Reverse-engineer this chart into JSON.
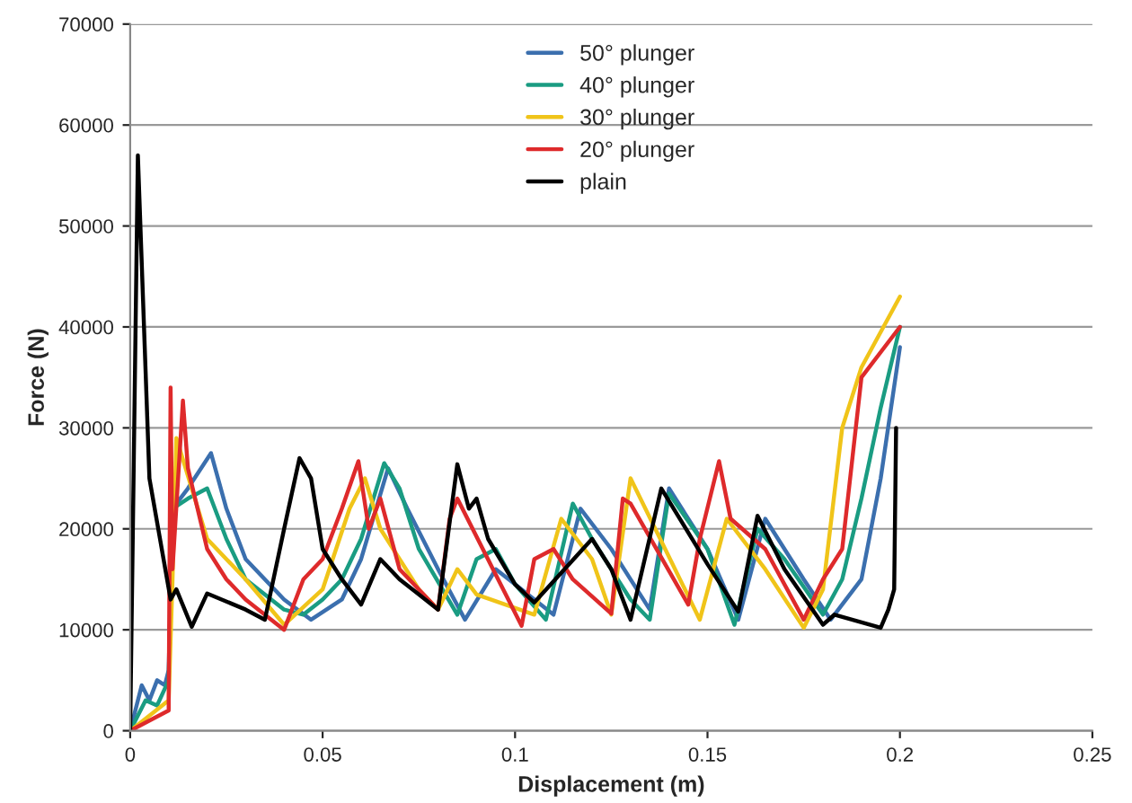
{
  "chart_data": {
    "type": "line",
    "xlabel": "Displacement (m)",
    "ylabel": "Force (N)",
    "xlim": [
      0,
      0.25
    ],
    "xticks": [
      0,
      0.05,
      0.1,
      0.15,
      0.2,
      0.25
    ],
    "ylim": [
      0,
      70000
    ],
    "yticks": [
      0,
      10000,
      20000,
      30000,
      40000,
      50000,
      60000,
      70000
    ],
    "grid": "y",
    "legend": "top",
    "marker": "none",
    "line_style": "solid",
    "series": [
      {
        "name": "50° plunger",
        "color": "#3b6fae",
        "x": [
          0,
          0.003,
          0.005,
          0.007,
          0.009,
          0.01,
          0.011,
          0.015,
          0.021,
          0.025,
          0.03,
          0.04,
          0.047,
          0.055,
          0.06,
          0.067,
          0.072,
          0.08,
          0.087,
          0.095,
          0.1,
          0.11,
          0.117,
          0.125,
          0.135,
          0.14,
          0.15,
          0.158,
          0.165,
          0.175,
          0.182,
          0.19,
          0.195,
          0.2
        ],
        "values": [
          0,
          4500,
          3000,
          5000,
          4500,
          6000,
          22000,
          24000,
          27500,
          22000,
          17000,
          13000,
          11000,
          13000,
          17000,
          26000,
          22000,
          16000,
          11000,
          16000,
          14500,
          11500,
          22000,
          18000,
          12000,
          24000,
          18000,
          11000,
          21000,
          15000,
          11000,
          15000,
          25000,
          38000
        ]
      },
      {
        "name": "40° plunger",
        "color": "#1a9c82",
        "x": [
          0,
          0.004,
          0.007,
          0.01,
          0.011,
          0.015,
          0.02,
          0.025,
          0.03,
          0.04,
          0.045,
          0.05,
          0.055,
          0.06,
          0.066,
          0.07,
          0.075,
          0.085,
          0.09,
          0.095,
          0.1,
          0.108,
          0.115,
          0.12,
          0.13,
          0.135,
          0.14,
          0.15,
          0.157,
          0.163,
          0.17,
          0.18,
          0.185,
          0.19,
          0.195,
          0.2
        ],
        "values": [
          0,
          3000,
          2500,
          5000,
          22000,
          23000,
          24000,
          19000,
          15000,
          12000,
          11500,
          13000,
          15000,
          19000,
          26500,
          24000,
          18000,
          11500,
          17000,
          18000,
          14500,
          11000,
          22500,
          19000,
          13000,
          11000,
          23500,
          18000,
          10500,
          20000,
          17000,
          11500,
          15000,
          23000,
          32000,
          40000
        ]
      },
      {
        "name": "30° plunger",
        "color": "#f0c419",
        "x": [
          0,
          0.005,
          0.01,
          0.011,
          0.012,
          0.02,
          0.03,
          0.04,
          0.05,
          0.057,
          0.061,
          0.065,
          0.075,
          0.08,
          0.085,
          0.09,
          0.105,
          0.112,
          0.12,
          0.125,
          0.13,
          0.148,
          0.155,
          0.165,
          0.175,
          0.18,
          0.185,
          0.19,
          0.2
        ],
        "values": [
          0,
          1500,
          3000,
          15000,
          29000,
          19000,
          15000,
          10500,
          14000,
          22000,
          25000,
          20000,
          14000,
          12000,
          16000,
          13500,
          11500,
          21000,
          17000,
          11500,
          25000,
          11000,
          21000,
          16000,
          10200,
          14000,
          30000,
          36000,
          43000
        ]
      },
      {
        "name": "20° plunger",
        "color": "#de2a2b",
        "x": [
          0,
          0.005,
          0.01,
          0.0105,
          0.011,
          0.0137,
          0.015,
          0.02,
          0.025,
          0.03,
          0.04,
          0.045,
          0.05,
          0.055,
          0.0593,
          0.062,
          0.065,
          0.07,
          0.08,
          0.083,
          0.085,
          0.1017,
          0.105,
          0.11,
          0.115,
          0.125,
          0.128,
          0.13,
          0.145,
          0.148,
          0.153,
          0.156,
          0.165,
          0.175,
          0.18,
          0.185,
          0.19,
          0.2
        ],
        "values": [
          0,
          1000,
          2000,
          34000,
          16000,
          32700,
          26000,
          18000,
          15000,
          13000,
          10000,
          15000,
          17000,
          22000,
          26700,
          20000,
          23000,
          16000,
          12000,
          21000,
          23000,
          10400,
          17000,
          18000,
          15000,
          11600,
          23000,
          22500,
          12500,
          19000,
          26700,
          21000,
          18000,
          11000,
          15000,
          18000,
          35000,
          40000
        ]
      },
      {
        "name": "plain",
        "color": "#000000",
        "x": [
          0,
          0.002,
          0.005,
          0.0105,
          0.012,
          0.016,
          0.02,
          0.03,
          0.035,
          0.04,
          0.044,
          0.047,
          0.05,
          0.055,
          0.06,
          0.065,
          0.07,
          0.075,
          0.08,
          0.085,
          0.088,
          0.09,
          0.093,
          0.1,
          0.105,
          0.12,
          0.125,
          0.13,
          0.138,
          0.15,
          0.158,
          0.163,
          0.17,
          0.18,
          0.183,
          0.195,
          0.197,
          0.1985,
          0.199
        ],
        "values": [
          0,
          57000,
          25000,
          13000,
          14000,
          10300,
          13600,
          12000,
          11000,
          20000,
          27000,
          25000,
          18000,
          15000,
          12500,
          17000,
          15000,
          13500,
          12000,
          26400,
          22000,
          23000,
          19000,
          14500,
          12700,
          19000,
          16000,
          11000,
          24000,
          16500,
          11800,
          21300,
          16000,
          10500,
          11500,
          10200,
          12000,
          14000,
          30000
        ]
      }
    ]
  }
}
